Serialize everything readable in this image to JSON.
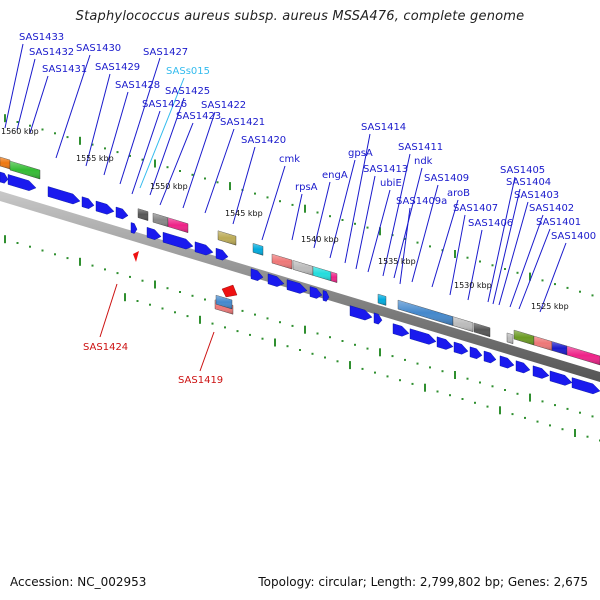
{
  "title": "Staphylococcus aureus subsp. aureus MSSA476, complete genome",
  "footer": {
    "accession": "Accession: NC_002953",
    "summary": "Topology: circular; Length: 2,799,802 bp; Genes: 2,675"
  },
  "colors": {
    "gene_label": "#1a1acc",
    "rna_label": "#33bbee",
    "reverse_label": "#cc1111",
    "backbone": "#888888",
    "tick": "#2f8f2f"
  },
  "kbp_labels": [
    "1560 kbp",
    "1555 kbp",
    "1550 kbp",
    "1545 kbp",
    "1540 kbp",
    "1535 kbp",
    "1530 kbp",
    "1525 kbp"
  ],
  "gene_labels": [
    "SAS1433",
    "SAS1432",
    "SAS1431",
    "SAS1430",
    "SAS1429",
    "SAS1428",
    "SAS1427",
    "SASs015",
    "SAS1426",
    "SAS1425",
    "SAS1423",
    "SAS1422",
    "SAS1421",
    "SAS1420",
    "cmk",
    "rpsA",
    "engA",
    "gpsA",
    "SAS1414",
    "SAS1413",
    "ubiE",
    "SAS1411",
    "ndk",
    "SAS1409",
    "SAS1409a",
    "aroB",
    "SAS1407",
    "SAS1406",
    "SAS1405",
    "SAS1404",
    "SAS1403",
    "SAS1402",
    "SAS1401",
    "SAS1400",
    "SAS1424",
    "SAS1419"
  ]
}
